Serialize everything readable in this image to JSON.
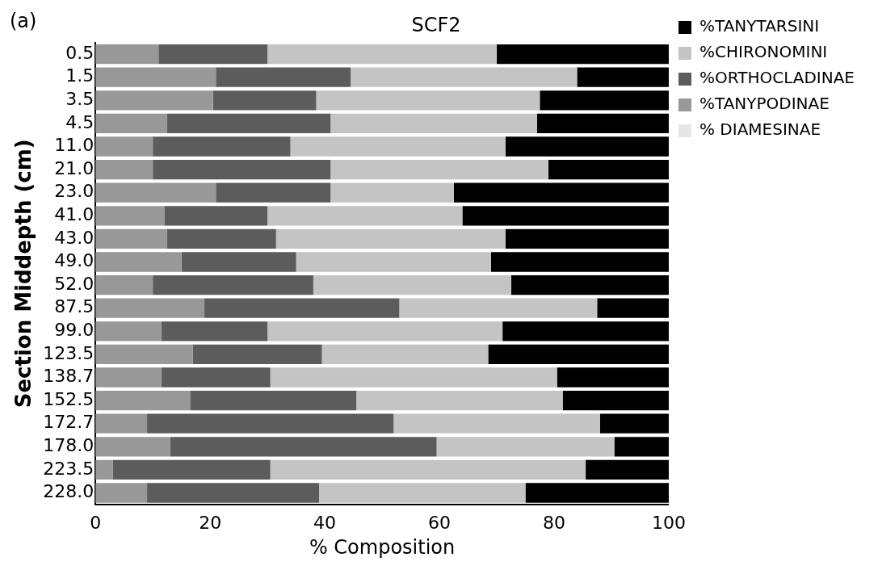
{
  "chart_data": {
    "type": "bar",
    "orientation": "horizontal",
    "stacked": true,
    "title": "SCF2",
    "xlabel": "% Composition",
    "ylabel": "Section Middepth (cm)",
    "annotations": [
      "(a)"
    ],
    "categories": [
      "0.5",
      "1.5",
      "3.5",
      "4.5",
      "11.0",
      "21.0",
      "23.0",
      "41.0",
      "43.0",
      "49.0",
      "52.0",
      "87.5",
      "99.0",
      "123.5",
      "138.7",
      "152.5",
      "172.7",
      "178.0",
      "223.5",
      "228.0"
    ],
    "series": [
      {
        "name": "% DIAMESINAE",
        "color": "#e6e6e6",
        "values": [
          0,
          0,
          0,
          0,
          0,
          0,
          0,
          0,
          0,
          0,
          0,
          0,
          0,
          0,
          0,
          0,
          0,
          0,
          0,
          0
        ]
      },
      {
        "name": "%TANYPODINAE",
        "color": "#989898",
        "values": [
          11,
          21,
          20.5,
          12.5,
          10,
          10,
          21,
          12,
          12.5,
          15,
          10,
          19,
          11.5,
          17,
          11.5,
          16.5,
          9,
          13,
          3,
          9
        ]
      },
      {
        "name": "%ORTHOCLADINAE",
        "color": "#5c5c5c",
        "values": [
          19,
          23.5,
          18,
          28.5,
          24,
          31,
          20,
          18,
          19,
          20,
          28,
          34,
          18.5,
          22.5,
          19,
          29,
          43,
          46.5,
          27.5,
          30
        ]
      },
      {
        "name": "%CHIRONOMINI",
        "color": "#c4c4c4",
        "values": [
          40,
          39.5,
          39,
          36,
          37.5,
          38,
          21.5,
          34,
          40,
          34,
          34.5,
          34.5,
          41,
          29,
          50,
          36,
          36,
          31,
          55,
          36
        ]
      },
      {
        "name": "%TANYTARSINI",
        "color": "#000000",
        "values": [
          30,
          16,
          22.5,
          23,
          28.5,
          21,
          37.5,
          36,
          28.5,
          31,
          27.5,
          12.5,
          29,
          31.5,
          19.5,
          18.5,
          12,
          9.5,
          14.5,
          25
        ]
      }
    ],
    "xlim": [
      0,
      100
    ],
    "xticks": [
      0,
      20,
      40,
      60,
      80,
      100
    ],
    "grid": false,
    "legend": "top right"
  }
}
